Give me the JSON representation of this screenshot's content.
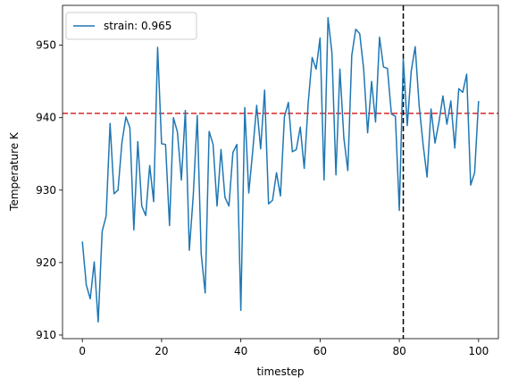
{
  "chart_data": {
    "type": "line",
    "xlabel": "timestep",
    "ylabel": "Temperature K",
    "xlim": [
      -5,
      105
    ],
    "ylim": [
      909.5,
      955.5
    ],
    "xticks": [
      0,
      20,
      40,
      60,
      80,
      100
    ],
    "yticks": [
      910,
      920,
      930,
      940,
      950
    ],
    "grid": false,
    "legend_position": "top-left",
    "series": [
      {
        "name": "strain: 0.965",
        "color": "#1f77b4",
        "x": [
          0,
          1,
          2,
          3,
          4,
          5,
          6,
          7,
          8,
          9,
          10,
          11,
          12,
          13,
          14,
          15,
          16,
          17,
          18,
          19,
          20,
          21,
          22,
          23,
          24,
          25,
          26,
          27,
          28,
          29,
          30,
          31,
          32,
          33,
          34,
          35,
          36,
          37,
          38,
          39,
          40,
          41,
          42,
          43,
          44,
          45,
          46,
          47,
          48,
          49,
          50,
          51,
          52,
          53,
          54,
          55,
          56,
          57,
          58,
          59,
          60,
          61,
          62,
          63,
          64,
          65,
          66,
          67,
          68,
          69,
          70,
          71,
          72,
          73,
          74,
          75,
          76,
          77,
          78,
          79,
          80,
          81,
          82,
          83,
          84,
          85,
          86,
          87,
          88,
          89,
          90,
          91,
          92,
          93,
          94,
          95,
          96,
          97,
          98,
          99,
          100
        ],
        "y": [
          922.9,
          916.9,
          915.0,
          920.1,
          911.8,
          924.3,
          926.4,
          939.2,
          929.5,
          930.0,
          936.6,
          940.1,
          938.6,
          924.5,
          936.7,
          927.8,
          926.5,
          933.4,
          928.4,
          949.7,
          936.4,
          936.3,
          925.1,
          940.0,
          938.0,
          931.4,
          941.0,
          921.7,
          929.3,
          940.3,
          921.2,
          915.8,
          938.1,
          936.3,
          927.8,
          935.6,
          929.0,
          927.8,
          935.2,
          936.3,
          913.4,
          941.4,
          929.6,
          935.4,
          941.7,
          935.7,
          943.8,
          928.1,
          928.6,
          932.4,
          929.2,
          940.1,
          942.1,
          935.3,
          935.6,
          938.7,
          933.0,
          942.0,
          948.3,
          946.7,
          951.0,
          931.4,
          953.8,
          948.9,
          932.1,
          946.7,
          937.2,
          932.7,
          948.6,
          952.2,
          951.6,
          946.7,
          937.9,
          945.0,
          939.4,
          951.1,
          947.0,
          946.8,
          940.5,
          940.2,
          927.2,
          948.1,
          938.9,
          946.4,
          949.8,
          941.7,
          936.3,
          931.8,
          941.2,
          936.5,
          939.4,
          943.0,
          939.1,
          942.3,
          935.8,
          944.0,
          943.5,
          946.0,
          930.7,
          932.4,
          942.3
        ]
      }
    ],
    "annotations": [
      {
        "type": "hline",
        "y": 940.6,
        "color": "#d62728",
        "style": "dashed"
      },
      {
        "type": "vline",
        "x": 81,
        "color": "#000000",
        "style": "dashed"
      }
    ]
  }
}
